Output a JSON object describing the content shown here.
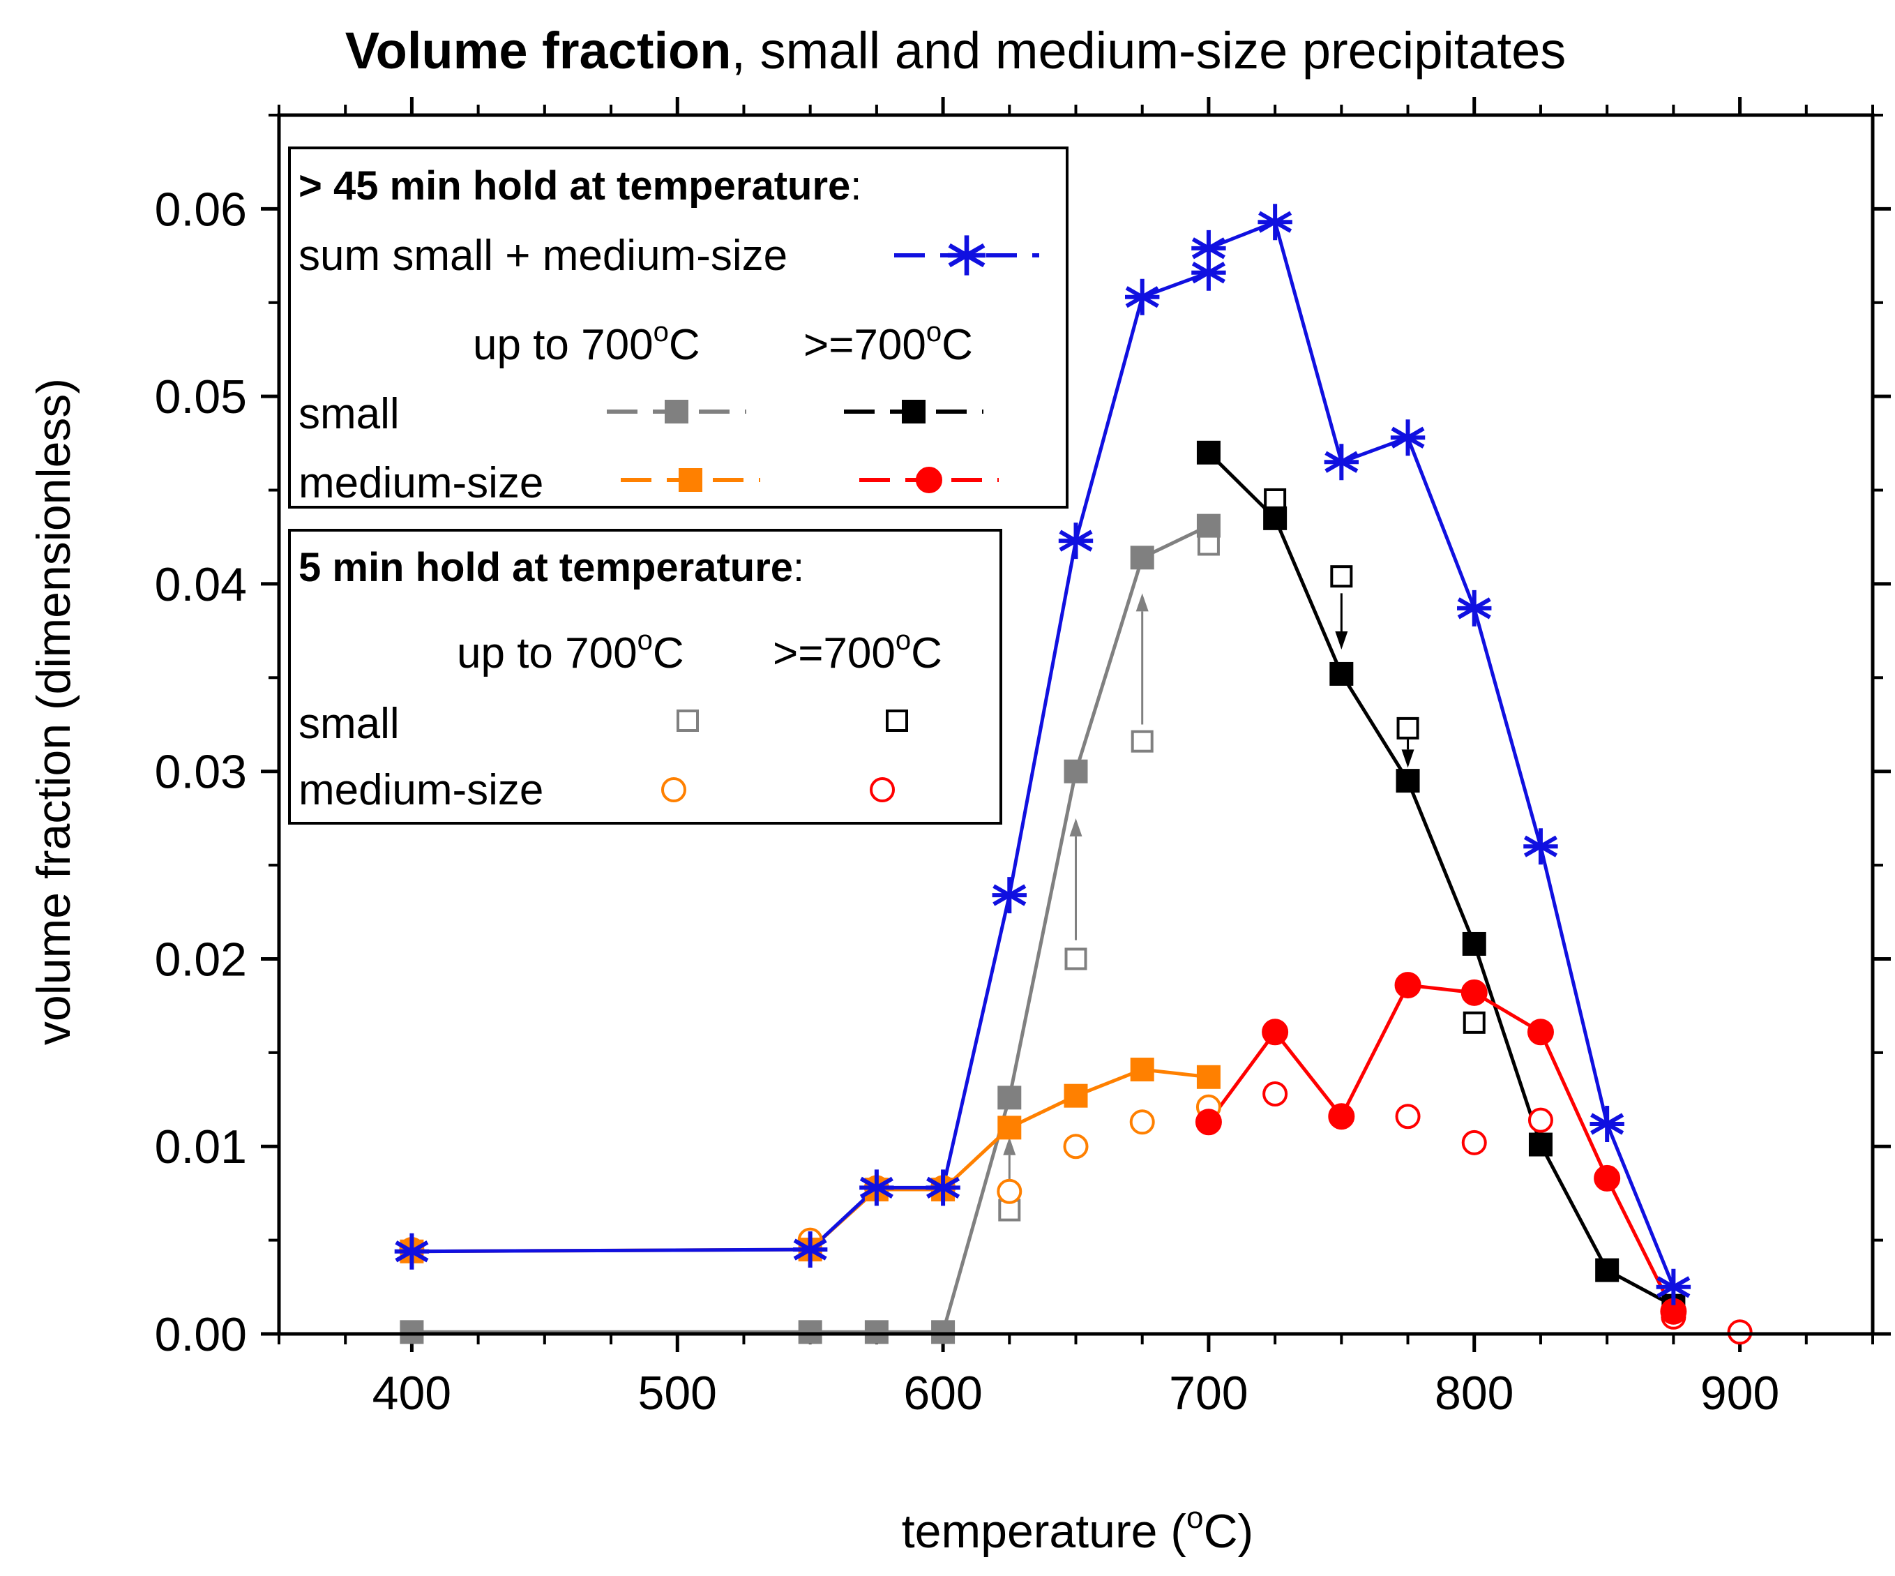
{
  "chart_data": {
    "type": "line",
    "title_bold": "Volume fraction",
    "title_rest": ", small and medium-size precipitates",
    "xlabel_main": "temperature (",
    "xlabel_sup": "o",
    "xlabel_end": "C)",
    "ylabel": "volume fraction  (dimensionless)",
    "xlim": [
      350,
      950
    ],
    "ylim": [
      0,
      0.065
    ],
    "x_ticks": [
      400,
      500,
      600,
      700,
      800,
      900
    ],
    "x_tick_labels": [
      "400",
      "500",
      "600",
      "700",
      "800",
      "900"
    ],
    "y_ticks": [
      0,
      0.01,
      0.02,
      0.03,
      0.04,
      0.05,
      0.06
    ],
    "y_tick_labels": [
      "0.00",
      "0.01",
      "0.02",
      "0.03",
      "0.04",
      "0.05",
      "0.06"
    ],
    "colors": {
      "sum": "#1010e0",
      "small_low": "#808080",
      "small_high": "#000000",
      "medium_low": "#ff8000",
      "medium_high": "#ff0000"
    },
    "series": [
      {
        "name": "sum small + medium-size (> 45 min hold)",
        "key": "sum",
        "marker": "star",
        "color": "#1010e0",
        "x": [
          400,
          550,
          575,
          600,
          625,
          650,
          675,
          700,
          700,
          725,
          750,
          775,
          800,
          825,
          850,
          875
        ],
        "y": [
          0.0044,
          0.0045,
          0.0078,
          0.0078,
          0.0234,
          0.0423,
          0.0553,
          0.0566,
          0.0579,
          0.0593,
          0.0465,
          0.0478,
          0.0387,
          0.026,
          0.0112,
          0.0025
        ]
      },
      {
        "name": "small up to 700°C (> 45 min hold)",
        "key": "small_low",
        "marker": "filled-square",
        "color": "#808080",
        "x": [
          400,
          550,
          575,
          600,
          625,
          650,
          675,
          700
        ],
        "y": [
          0.0001,
          0.0001,
          0.0001,
          0.0001,
          0.0126,
          0.03,
          0.0414,
          0.0431
        ]
      },
      {
        "name": "small >=700°C (> 45 min hold)",
        "key": "small_high",
        "marker": "filled-square",
        "color": "#000000",
        "x": [
          700,
          725,
          750,
          775,
          800,
          825,
          850,
          875
        ],
        "y": [
          0.047,
          0.0435,
          0.0352,
          0.0295,
          0.0208,
          0.0101,
          0.0034,
          0.0015
        ]
      },
      {
        "name": "medium-size up to 700°C (> 45 min hold)",
        "key": "medium_low",
        "marker": "filled-square",
        "color": "#ff8000",
        "x": [
          400,
          550,
          575,
          600,
          625,
          650,
          675,
          700
        ],
        "y": [
          0.0044,
          0.0045,
          0.0077,
          0.0077,
          0.011,
          0.0127,
          0.0141,
          0.0137
        ]
      },
      {
        "name": "medium-size >=700°C (> 45 min hold)",
        "key": "medium_high",
        "marker": "filled-circle",
        "color": "#ff0000",
        "x": [
          700,
          725,
          750,
          775,
          800,
          825,
          850,
          875
        ],
        "y": [
          0.0113,
          0.0161,
          0.0116,
          0.0186,
          0.0182,
          0.0161,
          0.0083,
          0.0012
        ]
      },
      {
        "name": "small up to 700°C (5 min hold)",
        "key": "small_low_5",
        "marker": "open-square",
        "color": "#808080",
        "x": [
          625,
          650,
          675,
          700
        ],
        "y": [
          0.0066,
          0.02,
          0.0316,
          0.0421
        ]
      },
      {
        "name": "small >=700°C (5 min hold)",
        "key": "small_high_5",
        "marker": "open-square",
        "color": "#000000",
        "x": [
          725,
          750,
          775,
          800
        ],
        "y": [
          0.0445,
          0.0404,
          0.0323,
          0.0166
        ]
      },
      {
        "name": "medium-size up to 700°C (5 min hold)",
        "key": "medium_low_5",
        "marker": "open-circle",
        "color": "#ff8000",
        "x": [
          400,
          550,
          575,
          600,
          625,
          650,
          675,
          700
        ],
        "y": [
          0.0045,
          0.005,
          0.0078,
          0.0078,
          0.0076,
          0.01,
          0.0113,
          0.0121
        ]
      },
      {
        "name": "medium-size >=700°C (5 min hold)",
        "key": "medium_high_5",
        "marker": "open-circle",
        "color": "#ff0000",
        "x": [
          725,
          750,
          775,
          800,
          825,
          875,
          900
        ],
        "y": [
          0.0128,
          0.0116,
          0.0116,
          0.0102,
          0.0114,
          0.0009,
          0.0001
        ]
      }
    ],
    "arrows": [
      {
        "x": 625,
        "y_from": 0.0075,
        "y_to": 0.0105,
        "color": "#808080"
      },
      {
        "x": 650,
        "y_from": 0.021,
        "y_to": 0.0275,
        "color": "#808080"
      },
      {
        "x": 675,
        "y_from": 0.0325,
        "y_to": 0.0395,
        "color": "#808080"
      },
      {
        "x": 750,
        "y_from": 0.0395,
        "y_to": 0.0365,
        "color": "#000000"
      },
      {
        "x": 775,
        "y_from": 0.032,
        "y_to": 0.0302,
        "color": "#000000"
      }
    ],
    "legend1": {
      "heading_bold": "> 45 min hold at temperature",
      "heading_end": ":",
      "sum_label": "sum small + medium-size",
      "col1_main": "up to 700",
      "col2_main": ">=700",
      "deg_sup": "o",
      "deg_c": "C",
      "row_small": "small",
      "row_medium": "medium-size"
    },
    "legend2": {
      "heading_bold": "5 min hold at temperature",
      "heading_end": ":",
      "col1_main": "up to 700",
      "col2_main": ">=700",
      "deg_sup": "o",
      "deg_c": "C",
      "row_small": "small",
      "row_medium": "medium-size"
    }
  }
}
